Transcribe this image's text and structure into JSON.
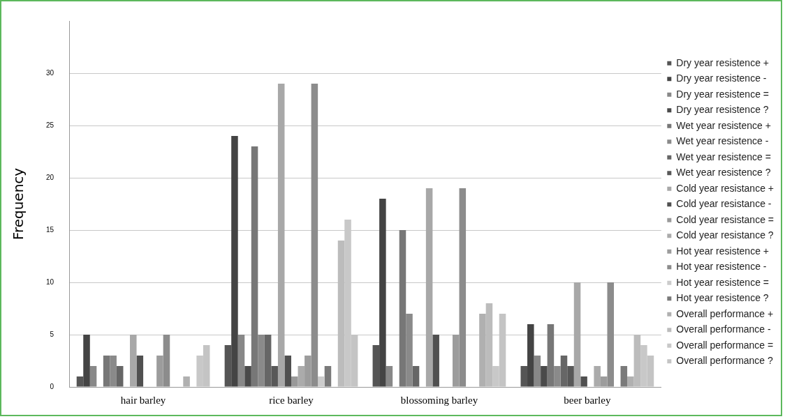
{
  "chart_data": {
    "type": "bar",
    "categories": [
      "hair barley",
      "rice barley",
      "blossoming barley",
      "beer barley"
    ],
    "ylabel": "Frequency",
    "ylim": [
      0,
      35
    ],
    "yticks": [
      0,
      5,
      10,
      15,
      20,
      25,
      30
    ],
    "grid": "y",
    "legend": "right",
    "series": [
      {
        "name": "Dry year resistence +",
        "color": "#555555",
        "values": [
          1,
          4,
          4,
          2
        ]
      },
      {
        "name": "Dry year resistence -",
        "color": "#444444",
        "values": [
          5,
          24,
          18,
          6
        ]
      },
      {
        "name": "Dry year resistence =",
        "color": "#888888",
        "values": [
          2,
          5,
          2,
          3
        ]
      },
      {
        "name": "Dry year resistence ?",
        "color": "#4a4a4a",
        "values": [
          0,
          2,
          0,
          2
        ]
      },
      {
        "name": "Wet year resistence +",
        "color": "#777777",
        "values": [
          3,
          23,
          15,
          6
        ]
      },
      {
        "name": "Wet year resistence -",
        "color": "#8a8a8a",
        "values": [
          3,
          5,
          7,
          2
        ]
      },
      {
        "name": "Wet year resistence =",
        "color": "#666666",
        "values": [
          2,
          5,
          2,
          3
        ]
      },
      {
        "name": "Wet year resistence ?",
        "color": "#585858",
        "values": [
          0,
          2,
          0,
          2
        ]
      },
      {
        "name": "Cold year resistance +",
        "color": "#a8a8a8",
        "values": [
          5,
          29,
          19,
          10
        ]
      },
      {
        "name": "Cold year resistance -",
        "color": "#505050",
        "values": [
          3,
          3,
          5,
          1
        ]
      },
      {
        "name": "Cold year resistance =",
        "color": "#999999",
        "values": [
          0,
          1,
          0,
          0
        ]
      },
      {
        "name": "Cold year resistance ?",
        "color": "#ababab",
        "values": [
          0,
          2,
          0,
          2
        ]
      },
      {
        "name": "Hot year resistence +",
        "color": "#9c9c9c",
        "values": [
          3,
          3,
          5,
          1
        ]
      },
      {
        "name": "Hot year resistence -",
        "color": "#8c8c8c",
        "values": [
          5,
          29,
          19,
          10
        ]
      },
      {
        "name": "Hot year resistence =",
        "color": "#cccccc",
        "values": [
          0,
          1,
          0,
          0
        ]
      },
      {
        "name": "Hot year resistence ?",
        "color": "#7a7a7a",
        "values": [
          0,
          2,
          0,
          2
        ]
      },
      {
        "name": "Overall performance +",
        "color": "#b0b0b0",
        "values": [
          1,
          0,
          7,
          1
        ]
      },
      {
        "name": "Overall performance -",
        "color": "#bcbcbc",
        "values": [
          0,
          14,
          8,
          5
        ]
      },
      {
        "name": "Overall performance =",
        "color": "#c8c8c8",
        "values": [
          3,
          16,
          2,
          4
        ]
      },
      {
        "name": "Overall performance ?",
        "color": "#c4c4c4",
        "values": [
          4,
          5,
          7,
          3
        ]
      }
    ]
  }
}
